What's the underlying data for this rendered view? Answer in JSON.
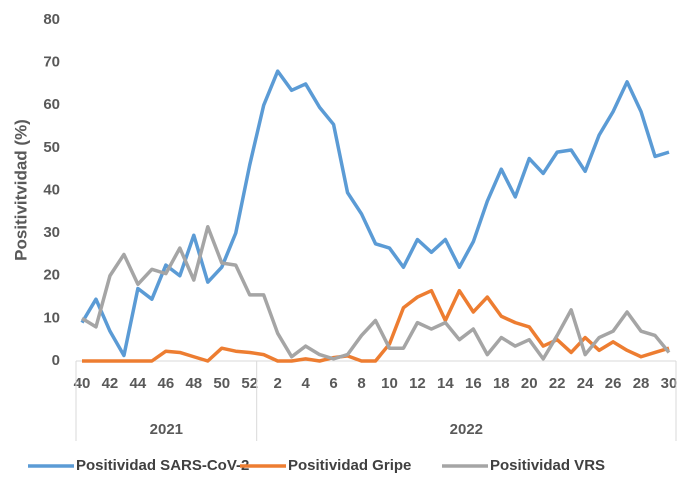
{
  "chart_data": {
    "type": "line",
    "y_label": "Positivitvidad (%)",
    "categories": [
      "40",
      null,
      "42",
      null,
      "44",
      null,
      "46",
      null,
      "48",
      null,
      "50",
      null,
      "52",
      null,
      "2",
      null,
      "4",
      null,
      "6",
      null,
      "8",
      null,
      "10",
      null,
      "12",
      null,
      "14",
      null,
      "16",
      null,
      "18",
      null,
      "20",
      null,
      "22",
      null,
      "24",
      null,
      "26",
      null,
      "28",
      null,
      "30"
    ],
    "x_groups": [
      {
        "label": "2021",
        "size": 13
      },
      {
        "label": "2022",
        "size": 30
      }
    ],
    "ylim": [
      0,
      80
    ],
    "yticks": [
      0,
      10,
      20,
      30,
      40,
      50,
      60,
      70,
      80
    ],
    "grid": false,
    "legend": "bottom",
    "series": [
      {
        "name": "Positividad SARS-CoV-2",
        "color": "#5b9bd5",
        "values": [
          9,
          14.5,
          7,
          1.3,
          17,
          14.5,
          22.5,
          20,
          29.5,
          18.5,
          22,
          30,
          46,
          60,
          68,
          63.5,
          65,
          59.5,
          55.5,
          39.5,
          34.5,
          27.5,
          26.5,
          22,
          28.5,
          25.5,
          28.5,
          22,
          28,
          37.5,
          45,
          38.5,
          47.5,
          44,
          49,
          49.5,
          44.5,
          53,
          58.5,
          65.5,
          58.5,
          48,
          49
        ]
      },
      {
        "name": "Positividad Gripe",
        "color": "#ed7d31",
        "values": [
          0,
          0,
          0,
          0,
          0,
          0,
          2.3,
          2,
          1,
          0,
          3,
          2.3,
          2,
          1.5,
          0,
          0,
          0.5,
          0,
          0.8,
          1.2,
          0,
          0,
          4,
          12.5,
          15,
          16.5,
          9.5,
          16.5,
          11.5,
          15,
          10.5,
          9,
          8,
          3.5,
          5,
          2,
          5.5,
          2.5,
          4.5,
          2.5,
          1,
          2,
          3
        ]
      },
      {
        "name": "Positividad VRS",
        "color": "#a5a5a5",
        "values": [
          10,
          8,
          20,
          25,
          18,
          21.5,
          20.5,
          26.5,
          19,
          31.5,
          23,
          22.5,
          15.5,
          15.5,
          6.5,
          1,
          3.5,
          1.5,
          0.5,
          1.5,
          6,
          9.5,
          3,
          3,
          9,
          7.5,
          9,
          5,
          7.5,
          1.5,
          5.5,
          3.5,
          5,
          0.5,
          6,
          12,
          1.5,
          5.5,
          7,
          11.5,
          7,
          6,
          2
        ]
      }
    ]
  }
}
